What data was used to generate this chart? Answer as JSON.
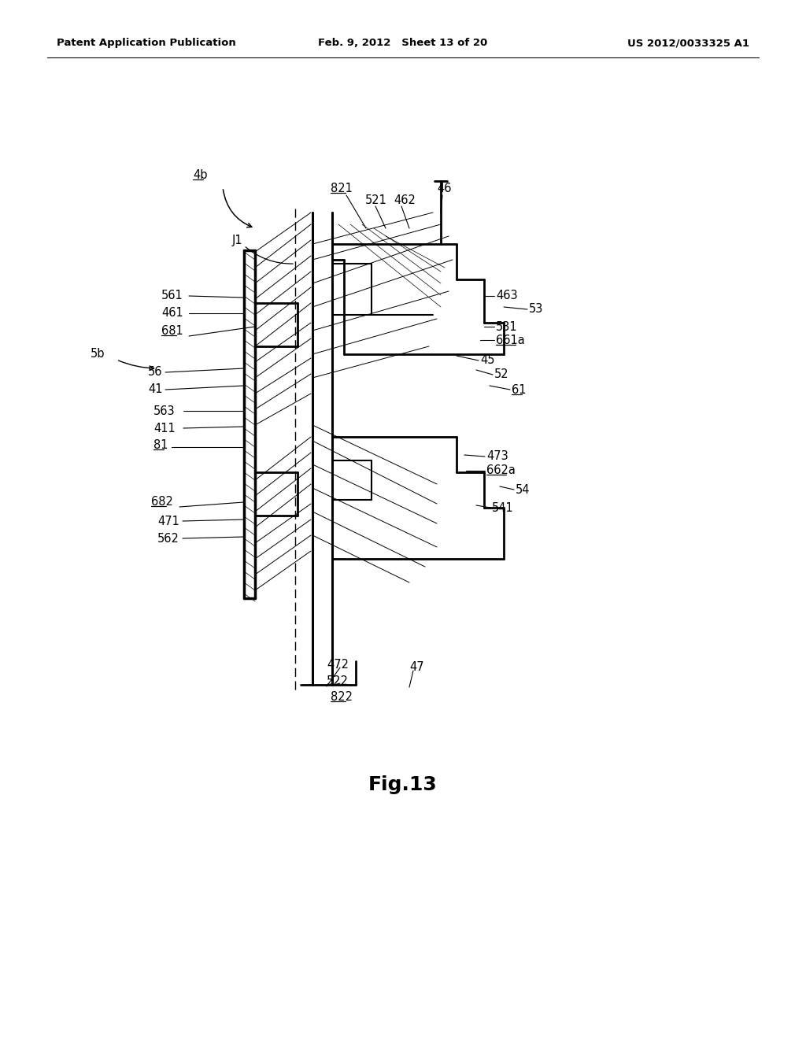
{
  "bg_color": "#ffffff",
  "header_left": "Patent Application Publication",
  "header_mid": "Feb. 9, 2012   Sheet 13 of 20",
  "header_right": "US 2012/0033325 A1",
  "fig_label": "Fig.13"
}
